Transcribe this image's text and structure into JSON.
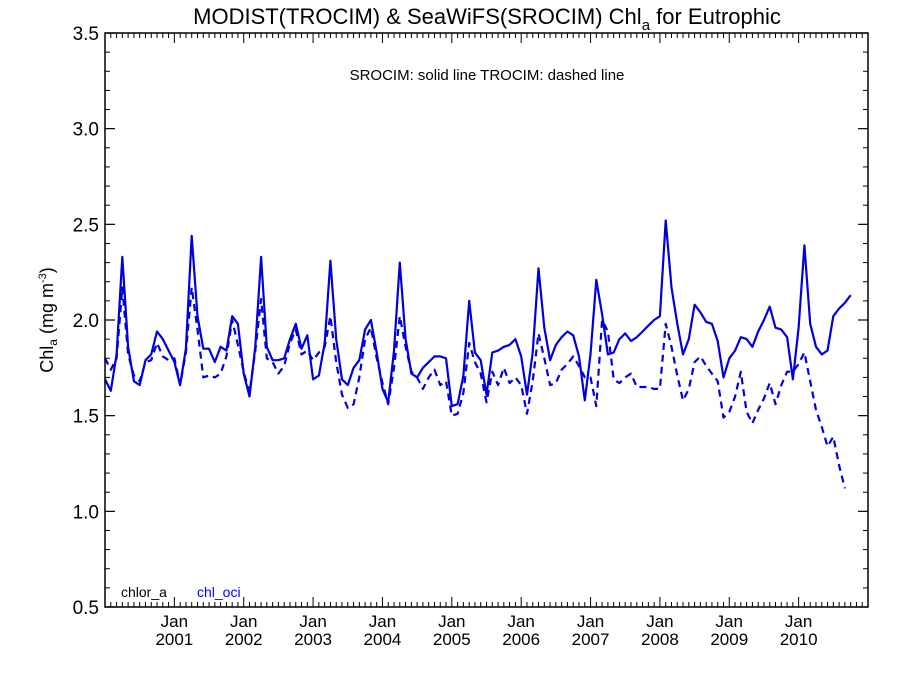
{
  "chart_data": {
    "type": "line",
    "title": {
      "main": "MODIST(TROCIM) & SeaWiFS(SROCIM)  Chl",
      "sub": "a",
      "end": " for Eutrophic"
    },
    "annotation": "SROCIM: solid line   TROCIM: dashed line",
    "ylabel": {
      "main": "Chl",
      "sub": "a",
      "unit": " (mg m",
      "sup": "-3",
      "close": ")"
    },
    "ylim": [
      0.5,
      3.5
    ],
    "yticks": [
      "0.5",
      "1.0",
      "1.5",
      "2.0",
      "2.5",
      "3.0",
      "3.5"
    ],
    "x_range": [
      "2000-01",
      "2010-12"
    ],
    "xticks": [
      {
        "month": "Jan",
        "year": "2001"
      },
      {
        "month": "Jan",
        "year": "2002"
      },
      {
        "month": "Jan",
        "year": "2003"
      },
      {
        "month": "Jan",
        "year": "2004"
      },
      {
        "month": "Jan",
        "year": "2005"
      },
      {
        "month": "Jan",
        "year": "2006"
      },
      {
        "month": "Jan",
        "year": "2007"
      },
      {
        "month": "Jan",
        "year": "2008"
      },
      {
        "month": "Jan",
        "year": "2009"
      },
      {
        "month": "Jan",
        "year": "2010"
      }
    ],
    "legend": [
      {
        "label": "chlor_a",
        "color": "#000000"
      },
      {
        "label": "chl_oci",
        "color": "#0000ff"
      }
    ],
    "series": [
      {
        "name": "SROCIM",
        "style": "solid",
        "color": "#0000dd",
        "points": [
          [
            "2000-01",
            1.69
          ],
          [
            "2000-02",
            1.63
          ],
          [
            "2000-03",
            1.82
          ],
          [
            "2000-04",
            2.33
          ],
          [
            "2000-05",
            1.86
          ],
          [
            "2000-06",
            1.68
          ],
          [
            "2000-07",
            1.66
          ],
          [
            "2000-08",
            1.79
          ],
          [
            "2000-09",
            1.82
          ],
          [
            "2000-10",
            1.94
          ],
          [
            "2000-11",
            1.9
          ],
          [
            "2000-12",
            1.84
          ],
          [
            "2001-01",
            1.78
          ],
          [
            "2001-02",
            1.66
          ],
          [
            "2001-03",
            1.85
          ],
          [
            "2001-04",
            2.44
          ],
          [
            "2001-05",
            2.02
          ],
          [
            "2001-06",
            1.85
          ],
          [
            "2001-07",
            1.85
          ],
          [
            "2001-08",
            1.78
          ],
          [
            "2001-09",
            1.86
          ],
          [
            "2001-10",
            1.84
          ],
          [
            "2001-11",
            2.02
          ],
          [
            "2001-12",
            1.98
          ],
          [
            "2002-01",
            1.72
          ],
          [
            "2002-02",
            1.6
          ],
          [
            "2002-03",
            1.86
          ],
          [
            "2002-04",
            2.33
          ],
          [
            "2002-05",
            1.86
          ],
          [
            "2002-06",
            1.79
          ],
          [
            "2002-07",
            1.79
          ],
          [
            "2002-08",
            1.8
          ],
          [
            "2002-09",
            1.9
          ],
          [
            "2002-10",
            1.98
          ],
          [
            "2002-11",
            1.85
          ],
          [
            "2002-12",
            1.92
          ],
          [
            "2003-01",
            1.69
          ],
          [
            "2003-02",
            1.71
          ],
          [
            "2003-03",
            1.88
          ],
          [
            "2003-04",
            2.31
          ],
          [
            "2003-05",
            1.9
          ],
          [
            "2003-06",
            1.69
          ],
          [
            "2003-07",
            1.66
          ],
          [
            "2003-08",
            1.75
          ],
          [
            "2003-09",
            1.79
          ],
          [
            "2003-10",
            1.95
          ],
          [
            "2003-11",
            2.0
          ],
          [
            "2003-12",
            1.83
          ],
          [
            "2004-01",
            1.64
          ],
          [
            "2004-02",
            1.57
          ],
          [
            "2004-03",
            1.84
          ],
          [
            "2004-04",
            2.3
          ],
          [
            "2004-05",
            1.9
          ],
          [
            "2004-06",
            1.72
          ],
          [
            "2004-07",
            1.7
          ],
          [
            "2004-08",
            1.75
          ],
          [
            "2004-09",
            1.78
          ],
          [
            "2004-10",
            1.81
          ],
          [
            "2004-11",
            1.81
          ],
          [
            "2004-12",
            1.8
          ],
          [
            "2005-01",
            1.55
          ],
          [
            "2005-02",
            1.56
          ],
          [
            "2005-03",
            1.71
          ],
          [
            "2005-04",
            2.1
          ],
          [
            "2005-05",
            1.83
          ],
          [
            "2005-06",
            1.79
          ],
          [
            "2005-07",
            1.61
          ],
          [
            "2005-08",
            1.83
          ],
          [
            "2005-09",
            1.84
          ],
          [
            "2005-10",
            1.86
          ],
          [
            "2005-11",
            1.87
          ],
          [
            "2005-12",
            1.9
          ],
          [
            "2006-01",
            1.81
          ],
          [
            "2006-02",
            1.61
          ],
          [
            "2006-03",
            1.83
          ],
          [
            "2006-04",
            2.27
          ],
          [
            "2006-05",
            1.96
          ],
          [
            "2006-06",
            1.79
          ],
          [
            "2006-07",
            1.87
          ],
          [
            "2006-08",
            1.91
          ],
          [
            "2006-09",
            1.94
          ],
          [
            "2006-10",
            1.92
          ],
          [
            "2006-11",
            1.81
          ],
          [
            "2006-12",
            1.58
          ],
          [
            "2007-01",
            1.82
          ],
          [
            "2007-02",
            2.21
          ],
          [
            "2007-03",
            2.03
          ],
          [
            "2007-04",
            1.82
          ],
          [
            "2007-05",
            1.83
          ],
          [
            "2007-06",
            1.9
          ],
          [
            "2007-07",
            1.93
          ],
          [
            "2007-08",
            1.89
          ],
          [
            "2007-09",
            1.91
          ],
          [
            "2007-10",
            1.94
          ],
          [
            "2007-11",
            1.97
          ],
          [
            "2007-12",
            2.0
          ],
          [
            "2008-01",
            2.02
          ],
          [
            "2008-02",
            2.52
          ],
          [
            "2008-03",
            2.17
          ],
          [
            "2008-04",
            1.98
          ],
          [
            "2008-05",
            1.82
          ],
          [
            "2008-06",
            1.9
          ],
          [
            "2008-07",
            2.08
          ],
          [
            "2008-08",
            2.04
          ],
          [
            "2008-09",
            1.99
          ],
          [
            "2008-10",
            1.98
          ],
          [
            "2008-11",
            1.89
          ],
          [
            "2008-12",
            1.7
          ],
          [
            "2009-01",
            1.8
          ],
          [
            "2009-02",
            1.84
          ],
          [
            "2009-03",
            1.91
          ],
          [
            "2009-04",
            1.9
          ],
          [
            "2009-05",
            1.86
          ],
          [
            "2009-06",
            1.94
          ],
          [
            "2009-07",
            2.0
          ],
          [
            "2009-08",
            2.07
          ],
          [
            "2009-09",
            1.96
          ],
          [
            "2009-10",
            1.95
          ],
          [
            "2009-11",
            1.91
          ],
          [
            "2009-12",
            1.69
          ],
          [
            "2010-01",
            1.96
          ],
          [
            "2010-02",
            2.39
          ],
          [
            "2010-03",
            1.98
          ],
          [
            "2010-04",
            1.86
          ],
          [
            "2010-05",
            1.82
          ],
          [
            "2010-06",
            1.84
          ],
          [
            "2010-07",
            2.02
          ],
          [
            "2010-08",
            2.06
          ],
          [
            "2010-09",
            2.09
          ],
          [
            "2010-10",
            2.13
          ]
        ]
      },
      {
        "name": "TROCIM",
        "style": "dashed",
        "color": "#0000dd",
        "points": [
          [
            "2000-01",
            1.8
          ],
          [
            "2000-02",
            1.74
          ],
          [
            "2000-03",
            1.8
          ],
          [
            "2000-04",
            2.17
          ],
          [
            "2000-05",
            1.82
          ],
          [
            "2000-06",
            1.71
          ],
          [
            "2000-07",
            1.68
          ],
          [
            "2000-08",
            1.78
          ],
          [
            "2000-09",
            1.79
          ],
          [
            "2000-10",
            1.88
          ],
          [
            "2000-11",
            1.81
          ],
          [
            "2000-12",
            1.79
          ],
          [
            "2001-01",
            1.8
          ],
          [
            "2001-02",
            1.66
          ],
          [
            "2001-03",
            1.83
          ],
          [
            "2001-04",
            2.17
          ],
          [
            "2001-05",
            1.95
          ],
          [
            "2001-06",
            1.7
          ],
          [
            "2001-07",
            1.71
          ],
          [
            "2001-08",
            1.7
          ],
          [
            "2001-09",
            1.72
          ],
          [
            "2001-10",
            1.81
          ],
          [
            "2001-11",
            2.0
          ],
          [
            "2001-12",
            1.87
          ],
          [
            "2002-01",
            1.73
          ],
          [
            "2002-02",
            1.62
          ],
          [
            "2002-03",
            1.84
          ],
          [
            "2002-04",
            2.11
          ],
          [
            "2002-05",
            1.8
          ],
          [
            "2002-06",
            1.78
          ],
          [
            "2002-07",
            1.72
          ],
          [
            "2002-08",
            1.76
          ],
          [
            "2002-09",
            1.88
          ],
          [
            "2002-10",
            1.95
          ],
          [
            "2002-11",
            1.82
          ],
          [
            "2002-12",
            1.84
          ],
          [
            "2003-01",
            1.79
          ],
          [
            "2003-02",
            1.83
          ],
          [
            "2003-03",
            1.86
          ],
          [
            "2003-04",
            2.02
          ],
          [
            "2003-05",
            1.78
          ],
          [
            "2003-06",
            1.61
          ],
          [
            "2003-07",
            1.54
          ],
          [
            "2003-08",
            1.56
          ],
          [
            "2003-09",
            1.7
          ],
          [
            "2003-10",
            1.9
          ],
          [
            "2003-11",
            1.96
          ],
          [
            "2003-12",
            1.8
          ],
          [
            "2004-01",
            1.67
          ],
          [
            "2004-02",
            1.56
          ],
          [
            "2004-03",
            1.75
          ],
          [
            "2004-04",
            2.02
          ],
          [
            "2004-05",
            1.86
          ],
          [
            "2004-06",
            1.73
          ],
          [
            "2004-07",
            1.7
          ],
          [
            "2004-08",
            1.64
          ],
          [
            "2004-09",
            1.7
          ],
          [
            "2004-10",
            1.74
          ],
          [
            "2004-11",
            1.66
          ],
          [
            "2004-12",
            1.68
          ],
          [
            "2005-01",
            1.5
          ],
          [
            "2005-02",
            1.51
          ],
          [
            "2005-03",
            1.62
          ],
          [
            "2005-04",
            1.88
          ],
          [
            "2005-05",
            1.78
          ],
          [
            "2005-06",
            1.72
          ],
          [
            "2005-07",
            1.57
          ],
          [
            "2005-08",
            1.73
          ],
          [
            "2005-09",
            1.66
          ],
          [
            "2005-10",
            1.75
          ],
          [
            "2005-11",
            1.67
          ],
          [
            "2005-12",
            1.7
          ],
          [
            "2006-01",
            1.66
          ],
          [
            "2006-02",
            1.51
          ],
          [
            "2006-03",
            1.68
          ],
          [
            "2006-04",
            1.93
          ],
          [
            "2006-05",
            1.8
          ],
          [
            "2006-06",
            1.66
          ],
          [
            "2006-07",
            1.67
          ],
          [
            "2006-08",
            1.74
          ],
          [
            "2006-09",
            1.77
          ],
          [
            "2006-10",
            1.81
          ],
          [
            "2006-11",
            1.76
          ],
          [
            "2006-12",
            1.7
          ],
          [
            "2007-01",
            1.7
          ],
          [
            "2007-02",
            1.55
          ],
          [
            "2007-03",
            2.0
          ],
          [
            "2007-04",
            1.94
          ],
          [
            "2007-05",
            1.69
          ],
          [
            "2007-06",
            1.67
          ],
          [
            "2007-07",
            1.7
          ],
          [
            "2007-08",
            1.72
          ],
          [
            "2007-09",
            1.65
          ],
          [
            "2007-10",
            1.65
          ],
          [
            "2007-11",
            1.65
          ],
          [
            "2007-12",
            1.64
          ],
          [
            "2008-01",
            1.64
          ],
          [
            "2008-02",
            1.98
          ],
          [
            "2008-03",
            1.86
          ],
          [
            "2008-04",
            1.71
          ],
          [
            "2008-05",
            1.58
          ],
          [
            "2008-06",
            1.64
          ],
          [
            "2008-07",
            1.78
          ],
          [
            "2008-08",
            1.81
          ],
          [
            "2008-09",
            1.76
          ],
          [
            "2008-10",
            1.72
          ],
          [
            "2008-11",
            1.68
          ],
          [
            "2008-12",
            1.49
          ],
          [
            "2009-01",
            1.52
          ],
          [
            "2009-02",
            1.6
          ],
          [
            "2009-03",
            1.73
          ],
          [
            "2009-04",
            1.52
          ],
          [
            "2009-05",
            1.46
          ],
          [
            "2009-06",
            1.53
          ],
          [
            "2009-07",
            1.59
          ],
          [
            "2009-08",
            1.67
          ],
          [
            "2009-09",
            1.56
          ],
          [
            "2009-10",
            1.66
          ],
          [
            "2009-11",
            1.73
          ],
          [
            "2009-12",
            1.73
          ],
          [
            "2010-01",
            1.77
          ],
          [
            "2010-02",
            1.83
          ],
          [
            "2010-03",
            1.68
          ],
          [
            "2010-04",
            1.53
          ],
          [
            "2010-05",
            1.44
          ],
          [
            "2010-06",
            1.34
          ],
          [
            "2010-07",
            1.39
          ],
          [
            "2010-08",
            1.24
          ],
          [
            "2010-09",
            1.12
          ]
        ]
      }
    ]
  }
}
